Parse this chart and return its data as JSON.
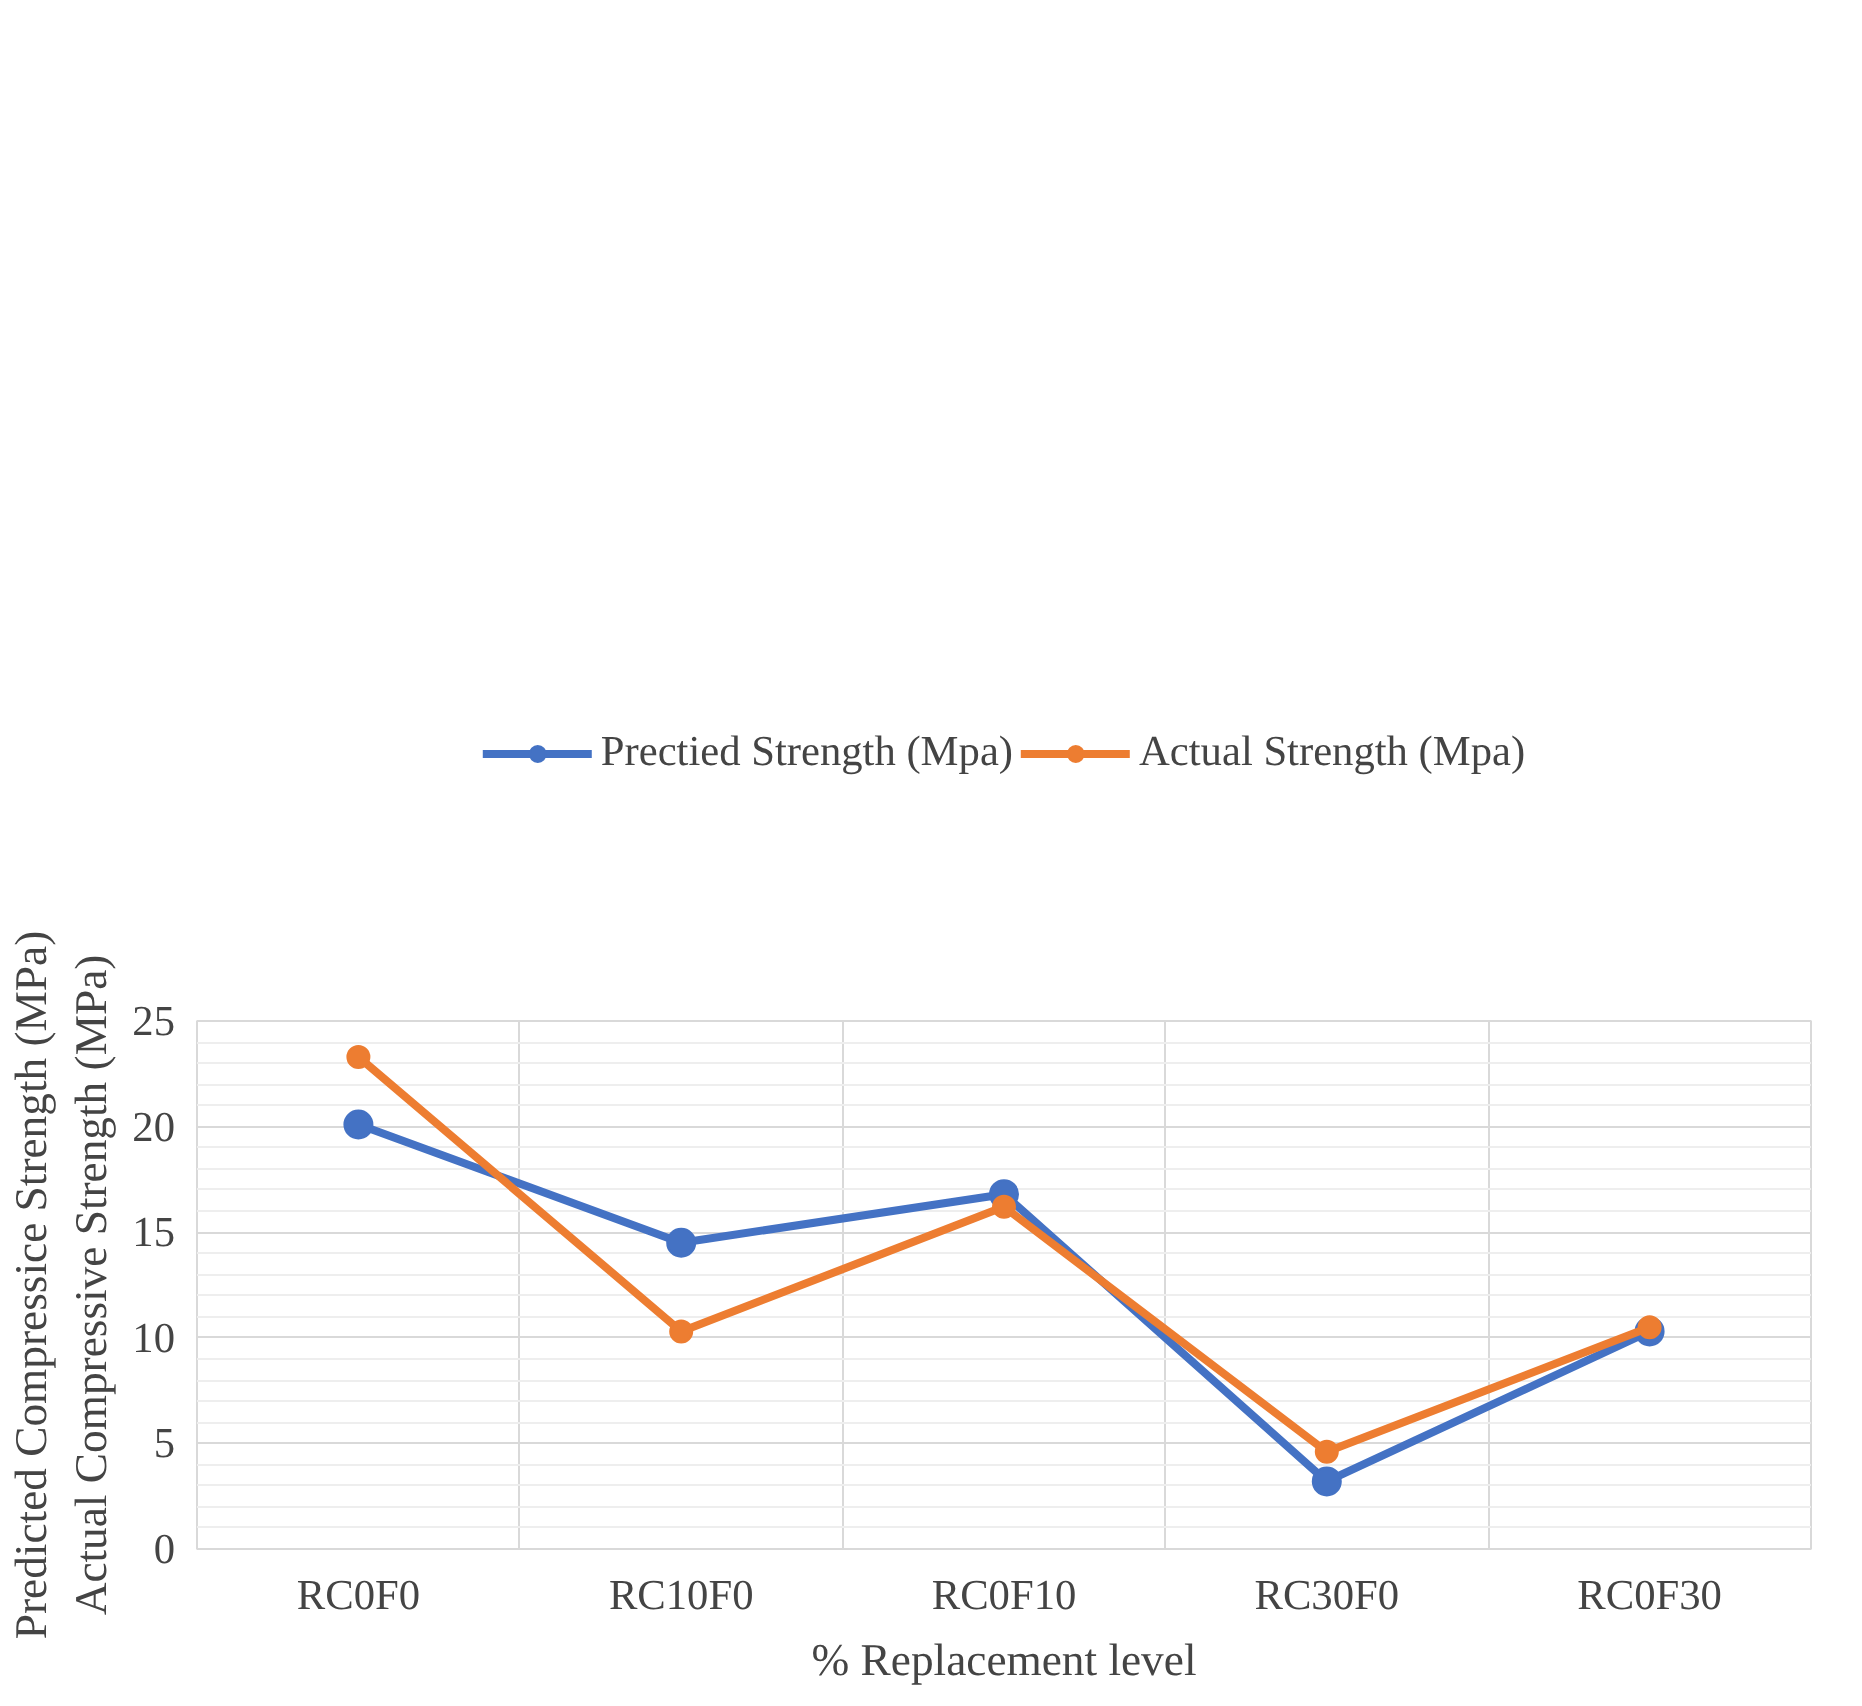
{
  "chart_data": {
    "type": "line",
    "xlabel": "% Replacement level",
    "ylabel": "Predicted Compressice Strength (MPa)\nActual Compressive Strength (MPa)",
    "categories": [
      "RC0F0",
      "RC10F0",
      "RC0F10",
      "RC30F0",
      "RC0F30"
    ],
    "series": [
      {
        "name": "Prectied Strength (Mpa)",
        "color": "#4472c4",
        "values": [
          20.1,
          14.5,
          16.8,
          3.2,
          10.3
        ]
      },
      {
        "name": "Actual Strength (Mpa)",
        "color": "#ed7d31",
        "values": [
          23.3,
          10.3,
          16.2,
          4.6,
          10.5
        ]
      }
    ],
    "ylim": [
      0,
      25
    ],
    "yticks": [
      0,
      5,
      10,
      15,
      20,
      25
    ],
    "grid": true,
    "legend": "top",
    "marker": "circle",
    "line_style": "solid"
  }
}
